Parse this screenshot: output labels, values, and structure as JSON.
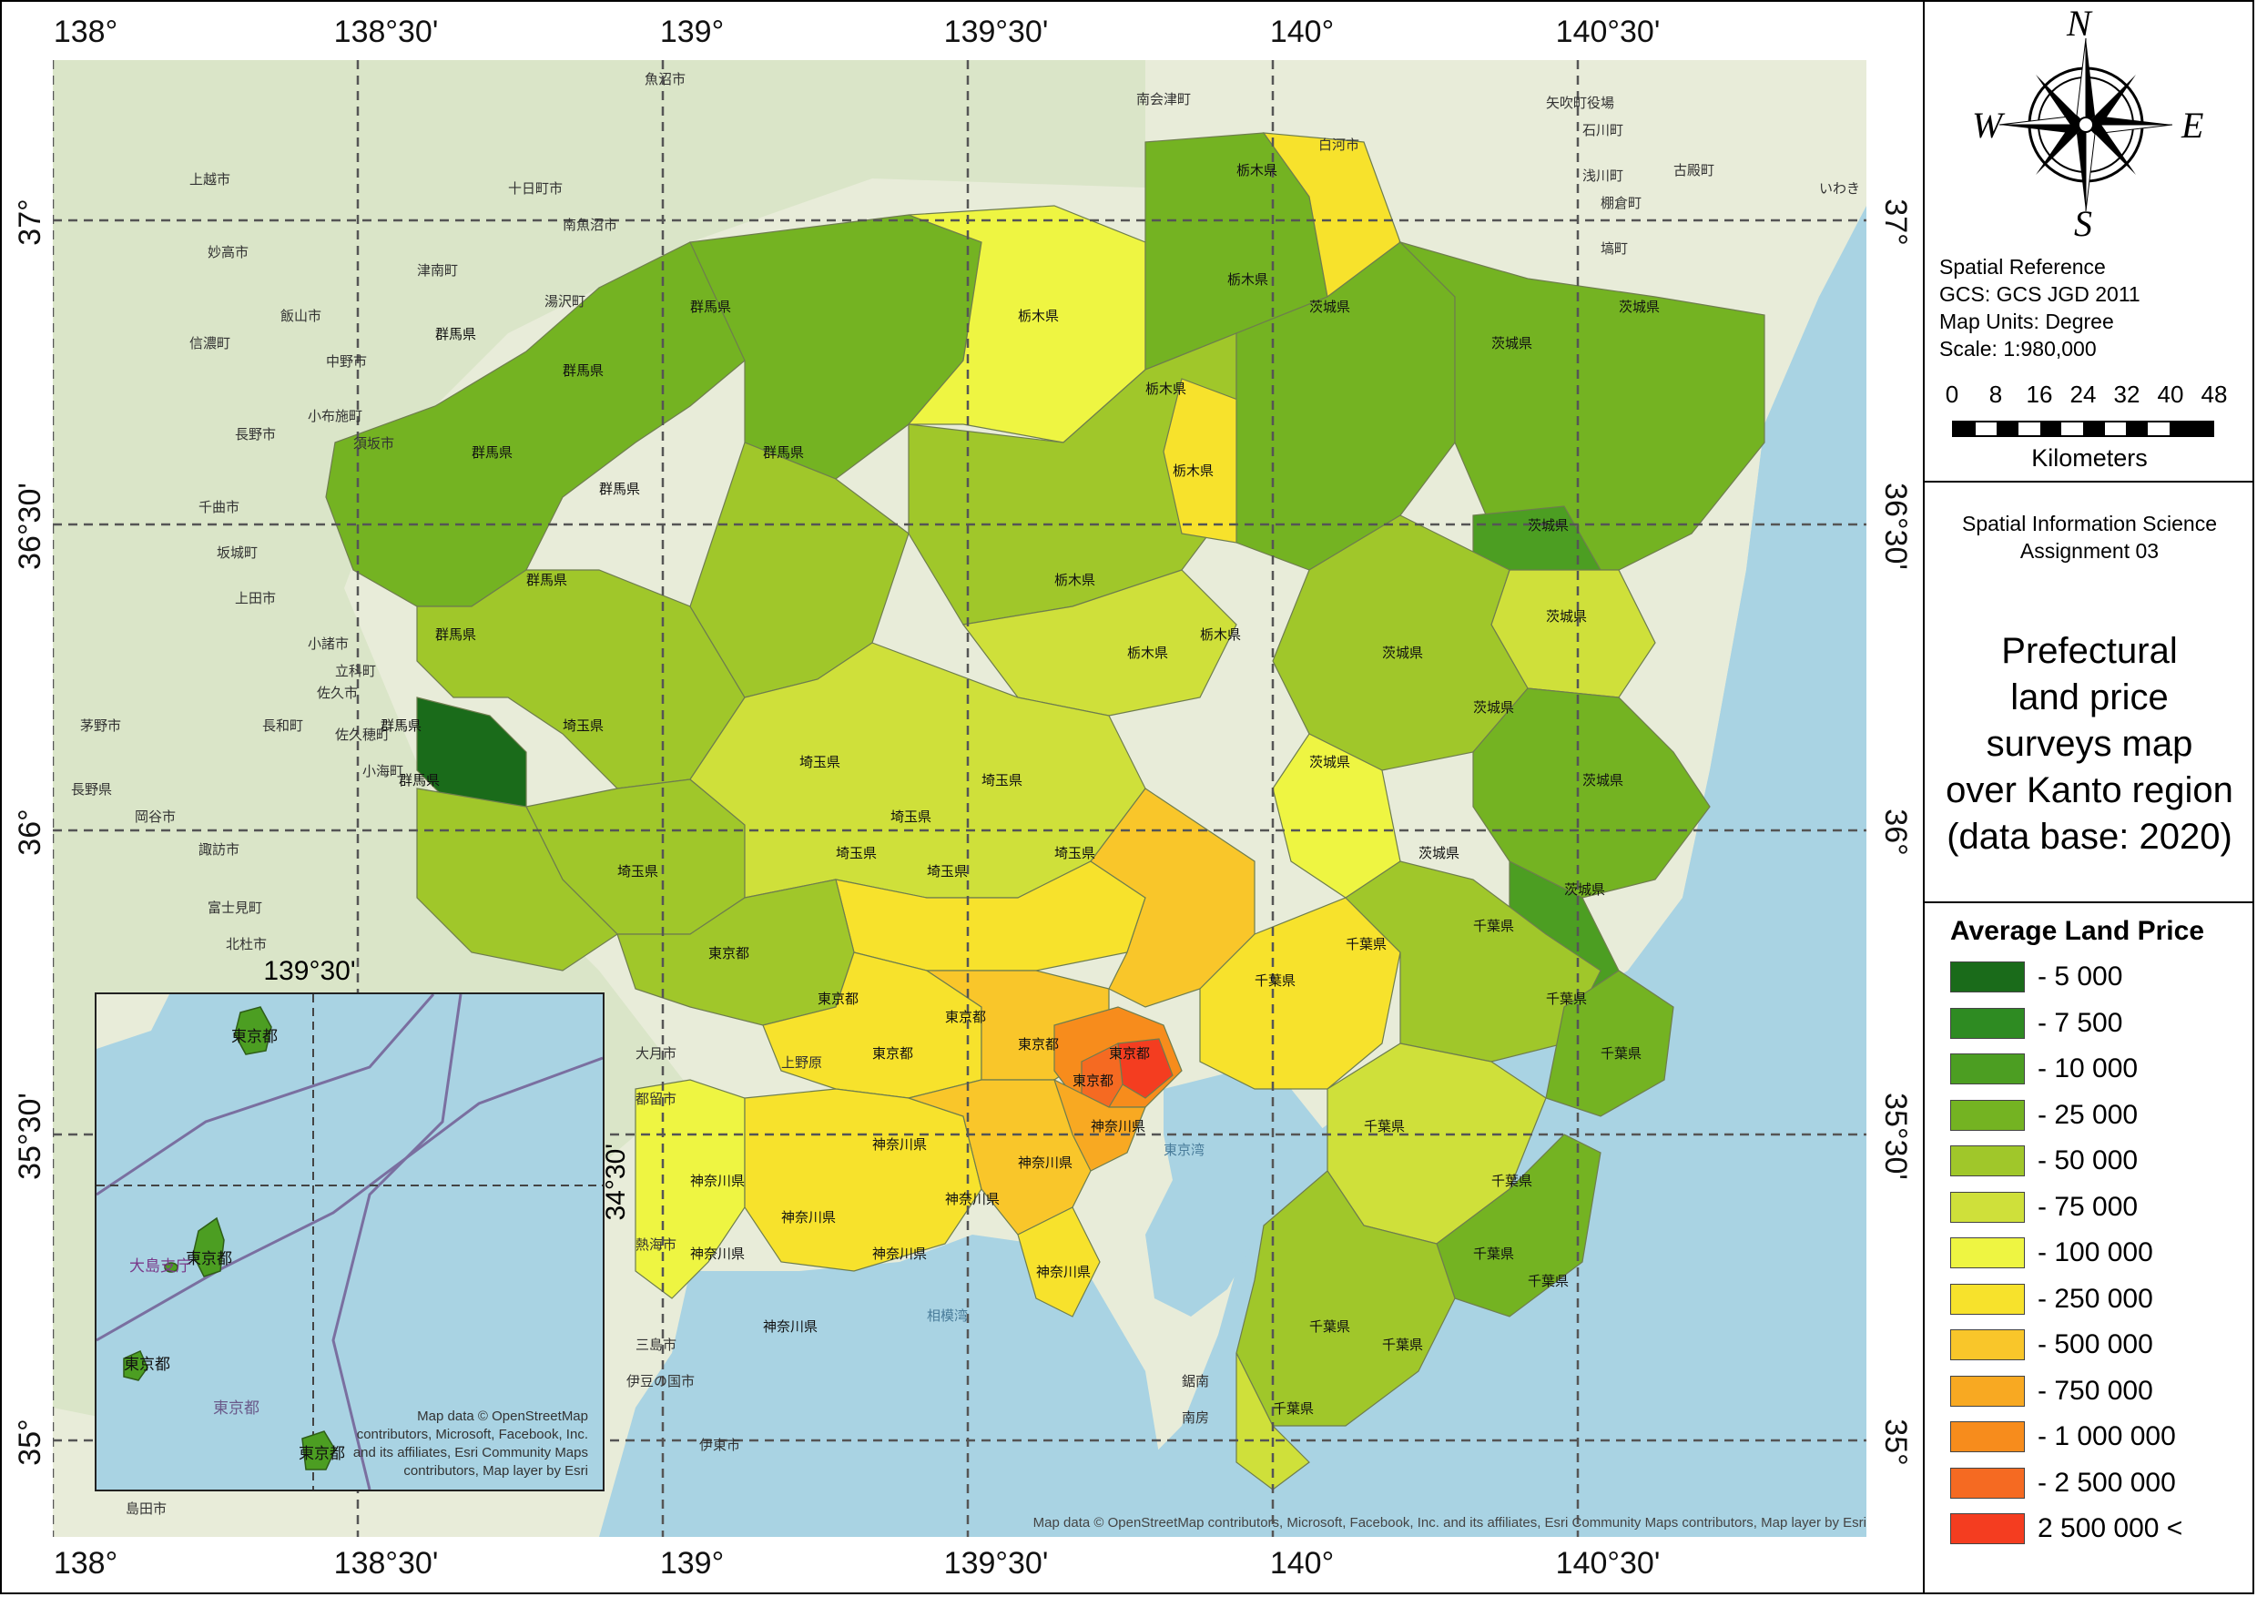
{
  "map": {
    "degree_labels": {
      "top": [
        "138°",
        "138°30'",
        "139°",
        "139°30'",
        "140°",
        "140°30'"
      ],
      "bottom": [
        "138°",
        "138°30'",
        "139°",
        "139°30'",
        "140°",
        "140°30'"
      ],
      "left": [
        "37°",
        "36°30'",
        "36°",
        "35°30'",
        "35°"
      ],
      "right": [
        "37°",
        "36°30'",
        "36°",
        "35°30'",
        "35°"
      ]
    },
    "prefecture_labels": [
      "栃木県",
      "群馬県",
      "茨城県",
      "埼玉県",
      "東京都",
      "千葉県",
      "神奈川県"
    ],
    "place_labels": [
      "上越市",
      "十日町市",
      "魚沼市",
      "南会津町",
      "白河市",
      "矢吹町役場",
      "石川町",
      "妙高市",
      "南魚沼市",
      "浅川町",
      "古殿町",
      "いわき",
      "信濃町",
      "津南町",
      "湯沢町",
      "棚倉町",
      "塙町",
      "飯山市",
      "中野市",
      "小布施町",
      "須坂市",
      "長野市",
      "千曲市",
      "坂城町",
      "上田市",
      "小諸市",
      "立科町",
      "佐久市",
      "長和町",
      "佐久穂町",
      "小海町",
      "茅野市",
      "長野県",
      "岡谷市",
      "諏訪市",
      "富士見町",
      "北杜市",
      "大月市",
      "都留市",
      "上野原",
      "熱海市",
      "伊豆の国市",
      "伊東市",
      "島田市",
      "三島市",
      "南房",
      "鋸南"
    ],
    "credits": "Map data © OpenStreetMap contributors, Microsoft, Facebook, Inc. and its affiliates, Esri Community Maps contributors, Map layer by Esri",
    "bay_label": "相模湾",
    "tokyo_bay_label": "東京湾"
  },
  "inset": {
    "top_degree": "139°30'",
    "left_degree": "34°30'",
    "island_labels": [
      "東京都",
      "東京都",
      "東京都",
      "東京都",
      "東京都"
    ],
    "sea_label": "東京都",
    "oshima_label": "大島支庁",
    "credits": "Map data © OpenStreetMap contributors, Microsoft, Facebook, Inc. and its affiliates, Esri Community Maps contributors, Map layer by Esri"
  },
  "compass": {
    "n": "N",
    "s": "S",
    "e": "E",
    "w": "W"
  },
  "spatial_reference": {
    "heading": "Spatial Reference",
    "gcs": "GCS: GCS JGD 2011",
    "units": "Map Units: Degree",
    "scale": "Scale: 1:980,000"
  },
  "scale_bar": {
    "ticks": [
      "0",
      "8",
      "16",
      "24",
      "32",
      "40",
      "48"
    ],
    "unit": "Kilometers"
  },
  "course": {
    "line1": "Spatial Information Science",
    "line2": "Assignment 03"
  },
  "title": {
    "line1": "Prefectural",
    "line2": "land price",
    "line3": "surveys map",
    "line4": "over Kanto region",
    "line5": "(data base: 2020)"
  },
  "legend": {
    "title": "Average Land Price",
    "items": [
      {
        "label": "- 5 000",
        "color": "#1a6b1a"
      },
      {
        "label": "- 7 500",
        "color": "#2e8b22"
      },
      {
        "label": "- 10 000",
        "color": "#4c9e22"
      },
      {
        "label": "- 25 000",
        "color": "#74b322"
      },
      {
        "label": "- 50 000",
        "color": "#a0c72a"
      },
      {
        "label": "- 75 000",
        "color": "#cfe03a"
      },
      {
        "label": "- 100 000",
        "color": "#eef542"
      },
      {
        "label": "- 250 000",
        "color": "#f7e22c"
      },
      {
        "label": "- 500 000",
        "color": "#f9c62a"
      },
      {
        "label": "- 750 000",
        "color": "#f8a922"
      },
      {
        "label": "- 1 000 000",
        "color": "#f78c1c"
      },
      {
        "label": "- 2 500 000",
        "color": "#f56a22"
      },
      {
        "label": "2 500 000 <",
        "color": "#f43d20"
      }
    ]
  }
}
